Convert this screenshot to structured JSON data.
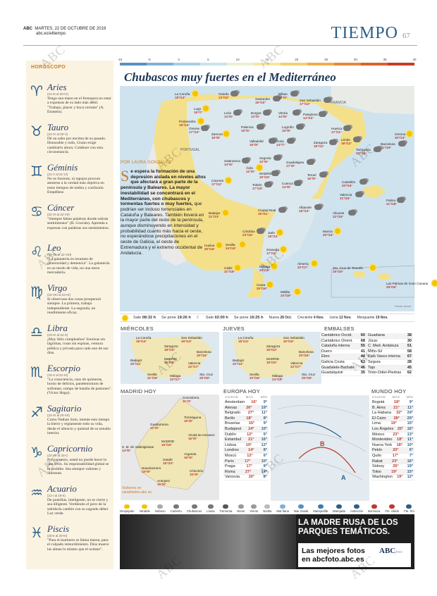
{
  "header": {
    "paper": "ABC",
    "date": "MARTES, 22 DE OCTUBRE DE 2019",
    "url": "abc.es/eltiempo",
    "section": "TIEMPO",
    "page": "67"
  },
  "watermark": "ABC",
  "horoscope": {
    "title": "HORÓSCOPO",
    "signs": [
      {
        "name": "Aries",
        "glyph": "♈",
        "dates": "(21-III al 20-IV)",
        "text": "Tenga una mano en el frenopara no estar a expensas de su lado más débil. \"Trabajo, placer y boca cerrada\" (A. Einstein)."
      },
      {
        "name": "Tauro",
        "glyph": "♉",
        "dates": "(21-IV al 20-V)",
        "text": "Dé un salto por encima de su pasado. Honorable y todo, Urano exige cambiarlo ahora. Colabore con esta circunstancia."
      },
      {
        "name": "Géminis",
        "glyph": "♊",
        "dates": "(21-V al 21-VI)",
        "text": "No se ilusione, ni tapujos procure atenerse a la verdad más objetiva en estos tiempos de niebla y confusión. Empéñese."
      },
      {
        "name": "Cáncer",
        "glyph": "♋",
        "dates": "(22-VI al 22-VII)",
        "text": "\"Siempre faltan palabras donde sobran sentimientos\" (B. Gracián). Aprenda a expresar con palabras sus sentimientos."
      },
      {
        "name": "Leo",
        "glyph": "♌",
        "dates": "(23-VII al 22-VIII)",
        "text": "\"La galantería es resumen de generosidad y demencia\". La galantería es un modo de vida, no una mera mercadería."
      },
      {
        "name": "Virgo",
        "glyph": "♍",
        "dates": "(24-VIII al 22-IX)",
        "text": "Si observase dos cosas prosperará siempre. La primera, trabajo independiente. La segunda, un rendimiento eficaz."
      },
      {
        "name": "Libra",
        "glyph": "♎",
        "dates": "(23-IX al 22-X)",
        "text": "¡Muy feliz cumpleaños! Sonrisas sin lágrimas, rosas sin espinas, ventura pública y privada para cada uno de sus días."
      },
      {
        "name": "Escorpio",
        "glyph": "♏",
        "dates": "(23-X al 22-XI)",
        "text": "\"La consciencia, caos de quimeras, horno de delirios, pandemónium de sofismas; campo de batalla de pasiones\". (Victor Hugo)."
      },
      {
        "name": "Sagitario",
        "glyph": "♐",
        "dates": "(23-XI al 20-XII)",
        "text": "Como Nathan Solo, intente esto tiempo la hierre y reglamente todo su vida, desde el silencio y quietud de su estudio interior."
      },
      {
        "name": "Capricornio",
        "glyph": "♑",
        "dates": "(22-XII al 20-I)",
        "text": "Por supuesto, usted no puede hacer lo que otros. Su responsabilidad global se lo prohíbe. Sea siempre valiente y diferente."
      },
      {
        "name": "Acuario",
        "glyph": "♒",
        "dates": "(21-I al 19-II)",
        "text": "De puntillas, inteligente, no se cierre y sea diligente. Verdiendo el jarro de la sabiduría cambie con su sagrado deber Luz verde."
      },
      {
        "name": "Piscis",
        "glyph": "♓",
        "dates": "(20-II al 20-III)",
        "text": "\"Para el marinero se llama marea, para el culpado remordimiento. Dios mueve las almas lo mismo que el océano\"."
      }
    ]
  },
  "scale": {
    "ticks": [
      "-10",
      "-5",
      "0",
      "5",
      "10",
      "15",
      "20",
      "25",
      "30",
      "35",
      "40"
    ],
    "colors": [
      "#5a8fc4",
      "#7fb1d8",
      "#a5cfe6",
      "#c9e3ee",
      "#e9f1d0",
      "#f6e7a1",
      "#f4cf6e",
      "#efae4c",
      "#e48a3c",
      "#d9632d",
      "#c73c24"
    ]
  },
  "headline": "Chubascos muy fuertes en el Mediterráneo",
  "byline": "POR LAURA GONZÁLEZ",
  "story": {
    "drop": "S",
    "bold": "e espera la formación de una depresión aislada en niveles altos que afectará a gran parte de la península y Baleares. La mayor inestabilidad se concentrará en el Mediterráneo, con chubascos y tormentas fuertes o muy fuertes,",
    "rest": " que podrían ser incluso torrenciales en Cataluña y Baleares. También lloverá en la mayor parte del resto de la península, aunque disminuyendo en intensidad y probabilidad cuanto más hacia el oeste, no esperándose precipitaciones en el oeste de Galicia, el oeste de Extremadura y el extremo occidental de Andalucía."
  },
  "map": {
    "france": "FRANCIA",
    "portugal": "PORTUGAL",
    "credit": "Fuente: Aemet",
    "cities": [
      {
        "n": "La Coruña",
        "t": "18°/13°"
      },
      {
        "n": "Oviedo",
        "t": "13°/10°"
      },
      {
        "n": "Santander",
        "t": "15°/10°"
      },
      {
        "n": "Bilbao",
        "t": "16°/9°"
      },
      {
        "n": "San Sebastián",
        "t": "17°/12°"
      },
      {
        "n": "Lugo",
        "t": "15°/7°"
      },
      {
        "n": "León",
        "t": "14°/5°"
      },
      {
        "n": "Burgos",
        "t": "13°/5°"
      },
      {
        "n": "Vitoria",
        "t": "14°/8°"
      },
      {
        "n": "Pamplona",
        "t": "14°/10°"
      },
      {
        "n": "Pontevedra",
        "t": "19°/14°"
      },
      {
        "n": "Orense",
        "t": "17°/10°"
      },
      {
        "n": "Palencia",
        "t": "15°/5°"
      },
      {
        "n": "Logroño",
        "t": "16°/8°"
      },
      {
        "n": "Huesca",
        "t": "17°/11°"
      },
      {
        "n": "Zamora",
        "t": "15°/8°"
      },
      {
        "n": "Valladolid",
        "t": "15°/8°"
      },
      {
        "n": "Soria",
        "t": "14°/7°"
      },
      {
        "n": "Zaragoza",
        "t": "18°/12°"
      },
      {
        "n": "Lérida",
        "t": "18°/12°"
      },
      {
        "n": "Gerona",
        "t": "20°/13°"
      },
      {
        "n": "Barcelona",
        "t": "21°/16°"
      },
      {
        "n": "Tarragona",
        "t": "22°/16°"
      },
      {
        "n": "Salamanca",
        "t": "14°/6°"
      },
      {
        "n": "Segovia",
        "t": "12°/6°"
      },
      {
        "n": "Ávila",
        "t": "12°/5°"
      },
      {
        "n": "Guadalajara",
        "t": "17°/9°"
      },
      {
        "n": "MADRID",
        "t": "15°/10°"
      },
      {
        "n": "Teruel",
        "t": "16°/9°"
      },
      {
        "n": "Castellón",
        "t": "20°/16°"
      },
      {
        "n": "Cáceres",
        "t": "17°/12°"
      },
      {
        "n": "Toledo",
        "t": "17°/10°"
      },
      {
        "n": "Cuenca",
        "t": "14°/8°"
      },
      {
        "n": "Valencia",
        "t": "21°/16°"
      },
      {
        "n": "Palma",
        "t": "21°/18°"
      },
      {
        "n": "Badajoz",
        "t": "21°/13°"
      },
      {
        "n": "Ciudad Real",
        "t": "16°/11°"
      },
      {
        "n": "Albacete",
        "t": "18°/10°"
      },
      {
        "n": "Alicante",
        "t": "22°/16°"
      },
      {
        "n": "Córdoba",
        "t": "23°/16°"
      },
      {
        "n": "Jaén",
        "t": "18°/13°"
      },
      {
        "n": "Murcia",
        "t": "20°/15°"
      },
      {
        "n": "Huelva",
        "t": "20°/16°"
      },
      {
        "n": "Sevilla",
        "t": "24°/15°"
      },
      {
        "n": "Granada",
        "t": "17°/11°"
      },
      {
        "n": "Almería",
        "t": "22°/17°"
      },
      {
        "n": "Cádiz",
        "t": "21°/16°"
      },
      {
        "n": "Málaga",
        "t": "23°/16°"
      },
      {
        "n": "Ceuta",
        "t": "20°/16°"
      },
      {
        "n": "Melilla",
        "t": "24°/19°"
      },
      {
        "n": "Sta. Cruz de Tenerife",
        "t": "25°/20°"
      },
      {
        "n": "Las Palmas de Gran Canaria",
        "t": "25°/20°"
      }
    ]
  },
  "sunbar": {
    "sale_l": "Sale",
    "sale": "08:32 h",
    "pone_l": "Se pone",
    "pone": "19:26 h",
    "lsale_l": "Sale",
    "lsale": "02:00 h",
    "lpone_l": "Se pone",
    "lpone": "16:25 h",
    "nueva": "Nueva",
    "nueva_d": "28 Oct.",
    "crec": "Creciente",
    "crec_d": "4 Nov.",
    "llena": "Llena",
    "llena_d": "12 Nov.",
    "mengu": "Menguante",
    "mengu_d": "19 Nov."
  },
  "miercoles": {
    "title": "MIÉRCOLES",
    "cities": [
      {
        "n": "La Coruña",
        "t": "19°/14°"
      },
      {
        "n": "San Sebastián",
        "t": "19°/13°"
      },
      {
        "n": "Zaragoza",
        "t": "18°/10°"
      },
      {
        "n": "Barcelona",
        "t": "20°/16°"
      },
      {
        "n": "MADRID",
        "t": "16°/10°"
      },
      {
        "n": "Badajoz",
        "t": "20°/14°"
      },
      {
        "n": "Valencia",
        "t": "22°/17°"
      },
      {
        "n": "Sevilla",
        "t": "21°/16°"
      },
      {
        "n": "Málaga",
        "t": "23°/17°"
      },
      {
        "n": "Sta. Cruz",
        "t": "25°/20°"
      }
    ]
  },
  "jueves": {
    "title": "JUEVES",
    "cities": [
      {
        "n": "La Coruña",
        "t": "18°/14°"
      },
      {
        "n": "San Sebastián",
        "t": "20°/15°"
      },
      {
        "n": "Zaragoza",
        "t": "19°/13°"
      },
      {
        "n": "Barcelona",
        "t": "20°/16°"
      },
      {
        "n": "MADRID",
        "t": "18°/10°"
      },
      {
        "n": "Badajoz",
        "t": "22°/13°"
      },
      {
        "n": "Valencia",
        "t": "22°/17°"
      },
      {
        "n": "Sevilla",
        "t": "23°/16°"
      },
      {
        "n": "Málaga",
        "t": "24°/18°"
      },
      {
        "n": "Sta. Cruz",
        "t": "25°/20°"
      }
    ]
  },
  "embalses": {
    "title": "EMBALSES",
    "left": [
      [
        "Cantábrico Occid.",
        "60"
      ],
      [
        "Cantábrico Orient.",
        "68"
      ],
      [
        "Cataluña interna",
        "55"
      ],
      [
        "Duero",
        "41"
      ],
      [
        "Ebro",
        "44"
      ],
      [
        "Galicia Costa",
        "63"
      ],
      [
        "Guadalete-Barbate",
        "46"
      ],
      [
        "Guadalquivir",
        "35"
      ]
    ],
    "right": [
      [
        "Guadiana",
        "38"
      ],
      [
        "Júcar",
        "30"
      ],
      [
        "C. Med. Andaluza",
        "51"
      ],
      [
        "Miño-Sil",
        "58"
      ],
      [
        "País Vasco interna",
        "67"
      ],
      [
        "Segura",
        "28"
      ],
      [
        "Tajo",
        "45"
      ],
      [
        "Tinto-Odiel-Piedras",
        "62"
      ]
    ]
  },
  "madrid": {
    "title": "MADRID HOY",
    "link": "Visítenos en canalmeteo.abc.es",
    "cities": [
      {
        "n": "Somosierra",
        "t": "11°/3°"
      },
      {
        "n": "Torrelaguna",
        "t": "15°/8°"
      },
      {
        "n": "Guadarrama",
        "t": "12°/5°"
      },
      {
        "n": "Alcalá de Henares",
        "t": "16°/9°"
      },
      {
        "n": "S. M. de Valdeiglesias",
        "t": "14°/9°"
      },
      {
        "n": "MADRID",
        "t": "15°/10°"
      },
      {
        "n": "Arganda",
        "t": "16°/9°"
      },
      {
        "n": "Getafe",
        "t": "16°/10°"
      },
      {
        "n": "Navalcarnero",
        "t": "15°/9°"
      },
      {
        "n": "Chinchón",
        "t": "15°/8°"
      },
      {
        "n": "Aranjuez",
        "t": "16°/9°"
      }
    ]
  },
  "europa": {
    "title": "EUROPA HOY",
    "h": [
      "CIUDAD",
      "MÁX",
      "MÍN"
    ],
    "rows": [
      [
        "Ámsterdam",
        "16°",
        "9°"
      ],
      [
        "Atenas",
        "26°",
        "19°"
      ],
      [
        "Belgrado",
        "27°",
        "11°"
      ],
      [
        "Berlín",
        "18°",
        "8°"
      ],
      [
        "Bruselas",
        "16°",
        "9°"
      ],
      [
        "Budapest",
        "24°",
        "10°"
      ],
      [
        "Dublín",
        "12°",
        "5°"
      ],
      [
        "Estambul",
        "21°",
        "16°"
      ],
      [
        "Lisboa",
        "19°",
        "12°"
      ],
      [
        "Londres",
        "14°",
        "8°"
      ],
      [
        "Moscú",
        "12°",
        "6°"
      ],
      [
        "París",
        "17°",
        "10°"
      ],
      [
        "Praga",
        "17°",
        "8°"
      ],
      [
        "Roma",
        "27°",
        "14°"
      ],
      [
        "Varsovia",
        "20°",
        "8°"
      ]
    ]
  },
  "mundo": {
    "title": "MUNDO HOY",
    "h": [
      "CIUDAD",
      "MÁX",
      "MÍN"
    ],
    "rows": [
      [
        "Bogotá",
        "18°",
        "9°"
      ],
      [
        "B. Aires",
        "21°",
        "11°"
      ],
      [
        "La Habana",
        "32°",
        "24°"
      ],
      [
        "El Cairo",
        "28°",
        "20°"
      ],
      [
        "Lima",
        "19°",
        "15°"
      ],
      [
        "Los Ángeles",
        "25°",
        "16°"
      ],
      [
        "México",
        "23°",
        "13°"
      ],
      [
        "Montevideo",
        "18°",
        "11°"
      ],
      [
        "Nueva York",
        "18°",
        "10°"
      ],
      [
        "Pekín",
        "20°",
        "6°"
      ],
      [
        "Quito",
        "17°",
        "7°"
      ],
      [
        "Rabat",
        "23°",
        "16°"
      ],
      [
        "Sídney",
        "26°",
        "19°"
      ],
      [
        "Tokio",
        "19°",
        "15°"
      ],
      [
        "Washington",
        "19°",
        "12°"
      ]
    ]
  },
  "legend": [
    {
      "l": "Despejado",
      "c": "#f2c500"
    },
    {
      "l": "Variable",
      "c": "#f2c500"
    },
    {
      "l": "Nuboso",
      "c": "#aaa"
    },
    {
      "l": "Cubierto",
      "c": "#777"
    },
    {
      "l": "Chubascos",
      "c": "#777"
    },
    {
      "l": "Lluvia",
      "c": "#777"
    },
    {
      "l": "Tormenta",
      "c": "#555"
    },
    {
      "l": "Nieve",
      "c": "#999"
    },
    {
      "l": "Viento",
      "c": "#999"
    },
    {
      "l": "Niebla",
      "c": "#bbb"
    },
    {
      "l": "Mar llana",
      "c": "#7fb1d8"
    },
    {
      "l": "Mar rizada",
      "c": "#5a8fc4"
    },
    {
      "l": "Marejadilla",
      "c": "#3d79b5"
    },
    {
      "l": "Marejada",
      "c": "#2c5f87"
    },
    {
      "l": "Anticiclón",
      "c": "#2c5f87"
    },
    {
      "l": "Borrasca",
      "c": "#c0392b"
    },
    {
      "l": "Fte. cálido",
      "c": "#c0392b"
    },
    {
      "l": "Fte. frío",
      "c": "#2c5f87"
    }
  ],
  "ad": {
    "line1": "LA MADRE RUSA DE LOS PARQUES TEMÁTICOS.",
    "line2": "Las mejores fotos en abcfoto.abc.es",
    "logo": "ABC",
    "logo2": "foto"
  }
}
